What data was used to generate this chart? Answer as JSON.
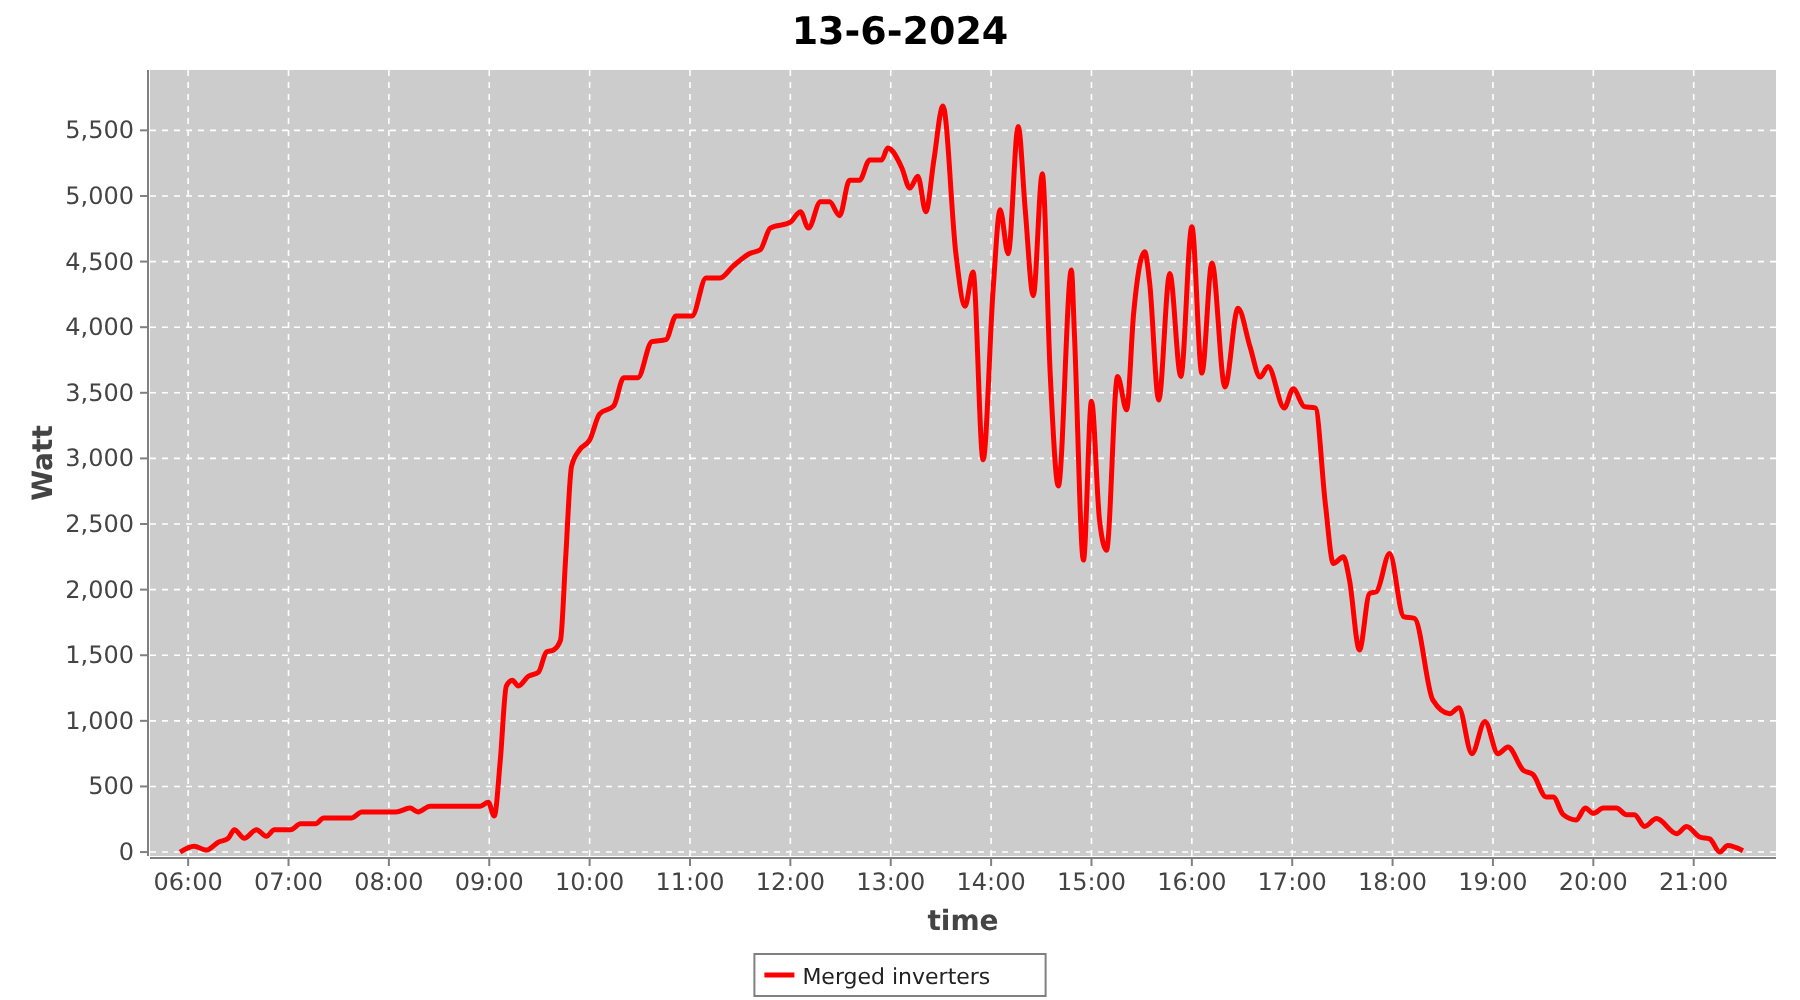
{
  "chart_data": {
    "type": "line",
    "title": "13-6-2024",
    "xlabel": "time",
    "ylabel": "Watt",
    "xlim": [
      5.62,
      21.82
    ],
    "ylim": [
      -30,
      5960
    ],
    "xticks": [
      {
        "value": 6,
        "label": "06:00"
      },
      {
        "value": 7,
        "label": "07:00"
      },
      {
        "value": 8,
        "label": "08:00"
      },
      {
        "value": 9,
        "label": "09:00"
      },
      {
        "value": 10,
        "label": "10:00"
      },
      {
        "value": 11,
        "label": "11:00"
      },
      {
        "value": 12,
        "label": "12:00"
      },
      {
        "value": 13,
        "label": "13:00"
      },
      {
        "value": 14,
        "label": "14:00"
      },
      {
        "value": 15,
        "label": "15:00"
      },
      {
        "value": 16,
        "label": "16:00"
      },
      {
        "value": 17,
        "label": "17:00"
      },
      {
        "value": 18,
        "label": "18:00"
      },
      {
        "value": 19,
        "label": "19:00"
      },
      {
        "value": 20,
        "label": "20:00"
      },
      {
        "value": 21,
        "label": "21:00"
      }
    ],
    "yticks": [
      0,
      500,
      {
        "value": 1000,
        "label": "1,000"
      },
      {
        "value": 1500,
        "label": "1,500"
      },
      {
        "value": 2000,
        "label": "2,000"
      },
      {
        "value": 2500,
        "label": "2,500"
      },
      {
        "value": 3000,
        "label": "3,000"
      },
      {
        "value": 3500,
        "label": "3,500"
      },
      {
        "value": 4000,
        "label": "4,000"
      },
      {
        "value": 4500,
        "label": "4,500"
      },
      {
        "value": 5000,
        "label": "5,000"
      },
      {
        "value": 5500,
        "label": "5,500"
      }
    ],
    "grid": true,
    "legend": "bottom",
    "line_style": "solid",
    "series": [
      {
        "name": "Merged inverters",
        "color": "#ff0000",
        "x": [
          5.92,
          6.06,
          6.18,
          6.3,
          6.4,
          6.46,
          6.56,
          6.68,
          6.78,
          6.86,
          7.02,
          7.12,
          7.27,
          7.35,
          7.63,
          7.73,
          8.07,
          8.21,
          8.29,
          8.41,
          8.91,
          8.99,
          9.05,
          9.11,
          9.17,
          9.23,
          9.29,
          9.39,
          9.49,
          9.57,
          9.64,
          9.71,
          9.76,
          9.82,
          9.9,
          10.0,
          10.1,
          10.24,
          10.34,
          10.48,
          10.62,
          10.76,
          10.86,
          11.02,
          11.16,
          11.3,
          11.43,
          11.59,
          11.7,
          11.8,
          12.0,
          12.1,
          12.18,
          12.3,
          12.39,
          12.49,
          12.59,
          12.69,
          12.79,
          12.91,
          12.97,
          13.11,
          13.19,
          13.27,
          13.35,
          13.43,
          13.52,
          13.65,
          13.74,
          13.82,
          13.92,
          14.02,
          14.09,
          14.17,
          14.27,
          14.34,
          14.42,
          14.51,
          14.59,
          14.67,
          14.8,
          14.83,
          14.92,
          15.0,
          15.08,
          15.15,
          15.26,
          15.35,
          15.42,
          15.53,
          15.58,
          15.67,
          15.78,
          15.89,
          16.0,
          16.1,
          16.2,
          16.33,
          16.46,
          16.58,
          16.68,
          16.76,
          16.92,
          17.01,
          17.12,
          17.23,
          17.33,
          17.41,
          17.51,
          17.57,
          17.67,
          17.77,
          17.84,
          17.97,
          18.11,
          18.22,
          18.4,
          18.57,
          18.66,
          18.79,
          18.92,
          19.05,
          19.15,
          19.3,
          19.4,
          19.53,
          19.6,
          19.7,
          19.83,
          19.92,
          20.0,
          20.1,
          20.23,
          20.33,
          20.41,
          20.51,
          20.63,
          20.83,
          20.93,
          21.06,
          21.16,
          21.26,
          21.34,
          21.49
        ],
        "values": [
          0,
          45,
          15,
          75,
          105,
          170,
          105,
          170,
          120,
          170,
          170,
          215,
          215,
          260,
          260,
          305,
          305,
          335,
          305,
          350,
          350,
          380,
          275,
          700,
          1265,
          1310,
          1265,
          1340,
          1370,
          1525,
          1540,
          1615,
          2225,
          2940,
          3065,
          3140,
          3340,
          3400,
          3615,
          3615,
          3890,
          3905,
          4085,
          4085,
          4375,
          4375,
          4465,
          4560,
          4590,
          4755,
          4800,
          4880,
          4755,
          4955,
          4955,
          4850,
          5120,
          5120,
          5275,
          5275,
          5365,
          5215,
          5060,
          5150,
          4880,
          5275,
          5685,
          4555,
          4160,
          4420,
          2990,
          4285,
          4895,
          4560,
          5530,
          4895,
          4240,
          5170,
          3625,
          2790,
          4435,
          3950,
          2225,
          3435,
          2530,
          2300,
          3625,
          3370,
          4105,
          4575,
          4335,
          3445,
          4410,
          3625,
          4765,
          3650,
          4490,
          3545,
          4145,
          3850,
          3620,
          3700,
          3385,
          3530,
          3395,
          3385,
          2655,
          2200,
          2250,
          2075,
          1540,
          1970,
          1985,
          2275,
          1795,
          1780,
          1160,
          1055,
          1100,
          750,
          995,
          750,
          800,
          625,
          590,
          420,
          420,
          285,
          245,
          335,
          295,
          335,
          335,
          285,
          285,
          195,
          255,
          140,
          195,
          115,
          100,
          0,
          50,
          10
        ]
      }
    ]
  }
}
